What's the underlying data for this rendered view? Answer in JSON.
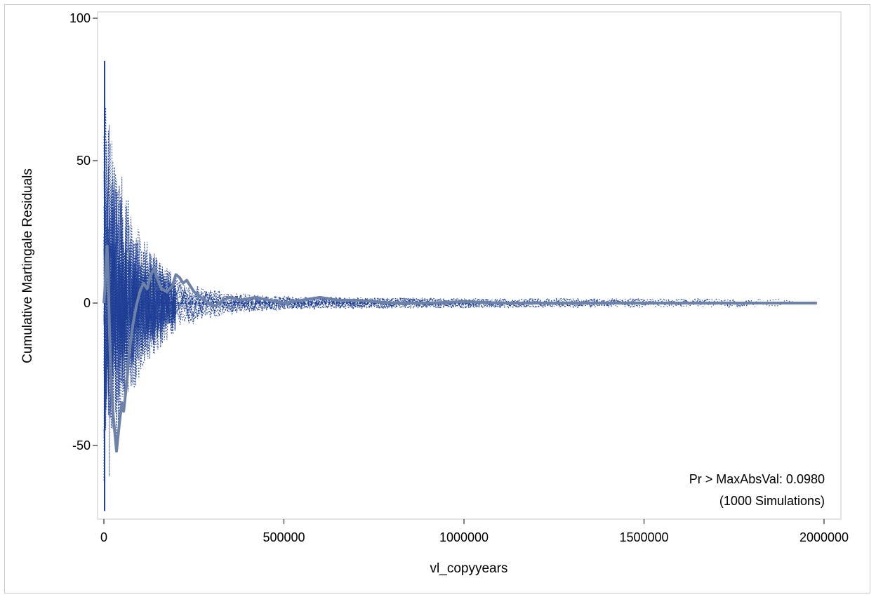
{
  "chart_data": {
    "type": "line",
    "title": "",
    "xlabel": "vl_copyyears",
    "ylabel": "Cumulative Martingale Residuals",
    "xlim": [
      0,
      2000000
    ],
    "ylim": [
      -75,
      100
    ],
    "x_ticks": [
      0,
      500000,
      1000000,
      1500000,
      2000000
    ],
    "x_tick_labels": [
      "0",
      "500000",
      "1000000",
      "1500000",
      "2000000"
    ],
    "y_ticks": [
      -50,
      0,
      50,
      100
    ],
    "y_tick_labels": [
      "-50",
      "0",
      "50",
      "100"
    ],
    "grid": false,
    "legend": "none",
    "annotation": {
      "line1": "Pr > MaxAbsVal: 0.0980",
      "line2": "(1000 Simulations)",
      "placement": "bottom-right"
    },
    "colors": {
      "simulated": "#1f3f96",
      "observed": "#6e82a8",
      "axis": "#000000",
      "frame": "#c8c8c8"
    },
    "series": [
      {
        "role": "observed",
        "x": [
          0,
          3000,
          6000,
          9000,
          12000,
          16000,
          20000,
          25000,
          30000,
          35000,
          40000,
          45000,
          50000,
          55000,
          60000,
          65000,
          70000,
          80000,
          90000,
          100000,
          110000,
          120000,
          130000,
          140000,
          150000,
          160000,
          175000,
          190000,
          200000,
          210000,
          220000,
          230000,
          250000,
          270000,
          290000,
          310000,
          330000,
          350000,
          380000,
          420000,
          460000,
          500000,
          550000,
          600000,
          650000,
          700000,
          800000,
          900000,
          1000000,
          1100000,
          1200000,
          1300000,
          1500000,
          1700000,
          1980000
        ],
        "y": [
          0,
          5,
          15,
          20,
          10,
          -12,
          -28,
          -38,
          -45,
          -52,
          -46,
          -40,
          -35,
          -38,
          -32,
          -26,
          -18,
          -8,
          -1,
          4,
          7,
          5,
          10,
          12,
          8,
          5,
          4,
          6,
          10,
          9,
          7,
          8,
          4,
          2,
          0,
          -1,
          1,
          2,
          1,
          2,
          1,
          0,
          1,
          2,
          1,
          1,
          0,
          0,
          0.5,
          0,
          0,
          0,
          0,
          0,
          0
        ]
      }
    ]
  }
}
